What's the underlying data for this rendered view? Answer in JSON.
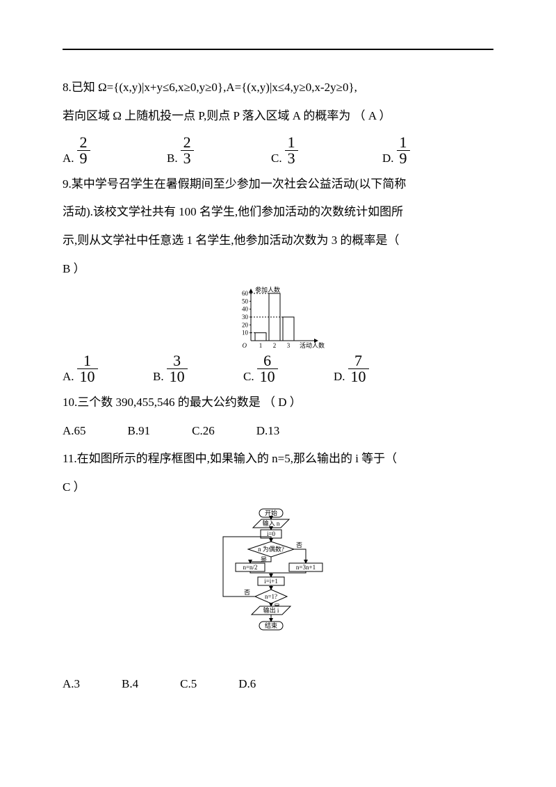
{
  "q8": {
    "prompt1": "8.已知 Ω={(x,y)|x+y≤6,x≥0,y≥0},A={(x,y)|x≤4,y≥0,x-2y≥0},",
    "prompt2": "若向区域 Ω 上随机投一点 P,则点 P 落入区域 A 的概率为 （ A ）",
    "choices": {
      "a": {
        "num": "2",
        "den": "9"
      },
      "b": {
        "num": "2",
        "den": "3"
      },
      "c": {
        "num": "1",
        "den": "3"
      },
      "d": {
        "num": "1",
        "den": "9"
      }
    },
    "labels": {
      "a": "A.",
      "b": "B.",
      "c": "C.",
      "d": "D."
    }
  },
  "q9": {
    "prompt1": "9.某中学号召学生在暑假期间至少参加一次社会公益活动(以下简称",
    "prompt2": "活动).该校文学社共有 100 名学生,他们参加活动的次数统计如图所",
    "prompt3": "示,则从文学社中任意选 1 名学生,他参加活动次数为 3 的概率是（",
    "prompt4": "B ）",
    "chart": {
      "type": "bar",
      "ylabel": "参加人数",
      "xlabel": "活动人数",
      "categories": [
        "1",
        "2",
        "3"
      ],
      "values": [
        10,
        60,
        30
      ],
      "y_ticks": [
        10,
        20,
        30,
        40,
        50,
        60
      ],
      "y_tick_labels": [
        "10",
        "20",
        "30",
        "40",
        "50",
        "60"
      ],
      "bar_color": "#ffffff",
      "border_color": "#000000",
      "origin_label": "O",
      "axis_fontsize": 9,
      "label_fontsize": 9
    },
    "choices": {
      "a": {
        "num": "1",
        "den": "10"
      },
      "b": {
        "num": "3",
        "den": "10"
      },
      "c": {
        "num": "6",
        "den": "10"
      },
      "d": {
        "num": "7",
        "den": "10"
      }
    },
    "labels": {
      "a": "A.",
      "b": "B.",
      "c": "C.",
      "d": "D."
    }
  },
  "q10": {
    "prompt": "10.三个数 390,455,546 的最大公约数是 （ D ）",
    "choices": {
      "a": "A.65",
      "b": "B.91",
      "c": "C.26",
      "d": "D.13"
    }
  },
  "q11": {
    "prompt1": "11.在如图所示的程序框图中,如果输入的 n=5,那么输出的 i 等于（",
    "prompt2": "C ）",
    "flow": {
      "type": "flowchart",
      "nodes": {
        "start": "开始",
        "input": "输入 n",
        "init": "i=0",
        "cond_even": "n 为偶数?",
        "left_box": "n=n/2",
        "right_box": "n=3n+1",
        "inc": "i=i+1",
        "cond_one": "n=1?",
        "output": "输出 i",
        "end": "结束"
      },
      "labels": {
        "yes": "是",
        "no": "否"
      },
      "border_color": "#000000",
      "background": "#ffffff",
      "text_fontsize": 9
    },
    "choices": {
      "a": "A.3",
      "b": "B.4",
      "c": "C.5",
      "d": "D.6"
    }
  }
}
